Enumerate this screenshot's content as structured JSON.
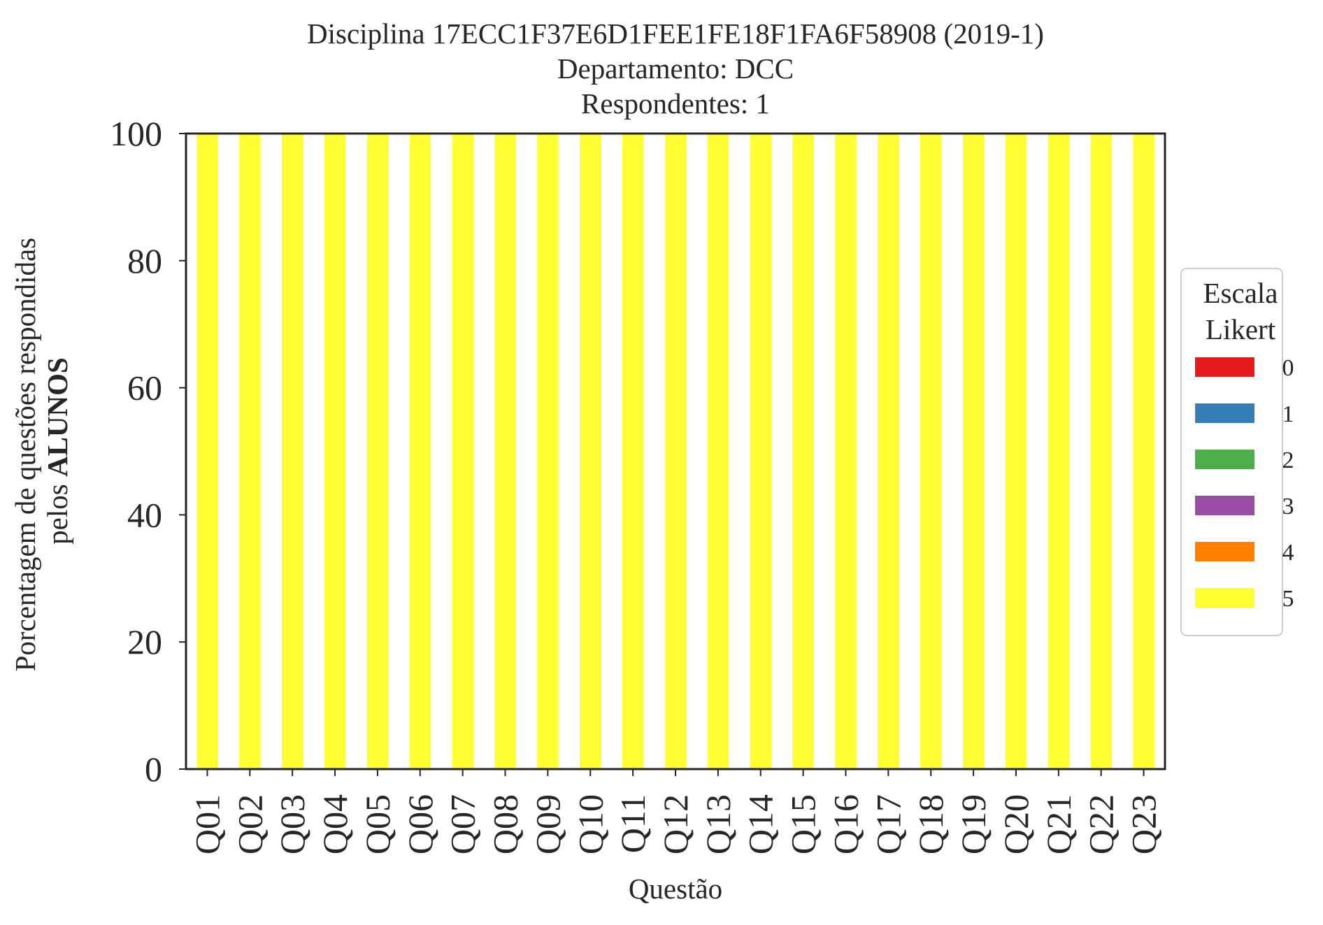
{
  "chart_data": {
    "type": "bar",
    "stacked": true,
    "title_lines": [
      "Disciplina 17ECC1F37E6D1FEE1FE18F1FA6F58908 (2019-1)",
      "Departamento: DCC",
      "Respondentes: 1"
    ],
    "xlabel": "Questão",
    "ylabel_line1": "Porcentagem de questões respondidas",
    "ylabel_line2_prefix": "pelos ",
    "ylabel_line2_bold": "ALUNOS",
    "ylim": [
      0,
      100
    ],
    "yticks": [
      0,
      20,
      40,
      60,
      80,
      100
    ],
    "categories": [
      "Q01",
      "Q02",
      "Q03",
      "Q04",
      "Q05",
      "Q06",
      "Q07",
      "Q08",
      "Q09",
      "Q10",
      "Q11",
      "Q12",
      "Q13",
      "Q14",
      "Q15",
      "Q16",
      "Q17",
      "Q18",
      "Q19",
      "Q20",
      "Q21",
      "Q22",
      "Q23"
    ],
    "series": [
      {
        "name": "0",
        "color": "#e41a1c",
        "values": [
          0,
          0,
          0,
          0,
          0,
          0,
          0,
          0,
          0,
          0,
          0,
          0,
          0,
          0,
          0,
          0,
          0,
          0,
          0,
          0,
          0,
          0,
          0
        ]
      },
      {
        "name": "1",
        "color": "#377eb8",
        "values": [
          0,
          0,
          0,
          0,
          0,
          0,
          0,
          0,
          0,
          0,
          0,
          0,
          0,
          0,
          0,
          0,
          0,
          0,
          0,
          0,
          0,
          0,
          0
        ]
      },
      {
        "name": "2",
        "color": "#4daf4a",
        "values": [
          0,
          0,
          0,
          0,
          0,
          0,
          0,
          0,
          0,
          0,
          0,
          0,
          0,
          0,
          0,
          0,
          0,
          0,
          0,
          0,
          0,
          0,
          0
        ]
      },
      {
        "name": "3",
        "color": "#984ea3",
        "values": [
          0,
          0,
          0,
          0,
          0,
          0,
          0,
          0,
          0,
          0,
          0,
          0,
          0,
          0,
          0,
          0,
          0,
          0,
          0,
          0,
          0,
          0,
          0
        ]
      },
      {
        "name": "4",
        "color": "#ff7f00",
        "values": [
          0,
          0,
          0,
          0,
          0,
          0,
          0,
          0,
          0,
          0,
          0,
          0,
          0,
          0,
          0,
          0,
          0,
          0,
          0,
          0,
          0,
          0,
          0
        ]
      },
      {
        "name": "5",
        "color": "#ffff33",
        "values": [
          100,
          100,
          100,
          100,
          100,
          100,
          100,
          100,
          100,
          100,
          100,
          100,
          100,
          100,
          100,
          100,
          100,
          100,
          100,
          100,
          100,
          100,
          100
        ]
      }
    ],
    "legend": {
      "title_lines": [
        "Escala",
        "Likert"
      ],
      "placement": "right"
    },
    "grid": false
  }
}
